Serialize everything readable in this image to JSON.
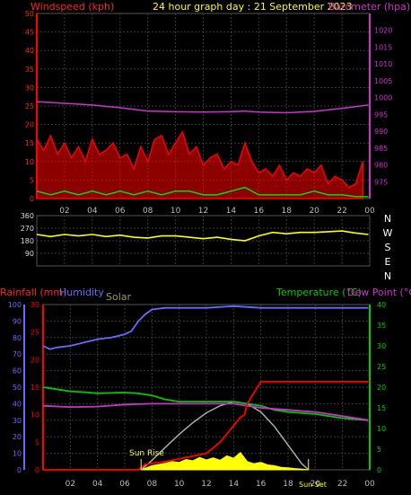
{
  "colors": {
    "background": "#000000",
    "grid": "#3a3a3a",
    "wind": "#ff0000",
    "gust_ok": "#00e000",
    "barometer": "#cc33cc",
    "direction": "#ffff00",
    "rain": "#ff0000",
    "humidity": "#6a6aff",
    "solar": "#ffff00",
    "solar_curve": "#aaaaaa",
    "temperature": "#00cc00",
    "dewpoint": "#cc33cc",
    "tick_text": "#bbbbbb",
    "direction_labels": "#ffffff"
  },
  "chart_data": [
    {
      "id": "wind_baro",
      "type": "line",
      "title": "24 hour graph day : 21 September 2023",
      "left_axis_label": "Windspeed (kph)",
      "right_axis_label": "Barometer (hpa)",
      "left_range": [
        0,
        50
      ],
      "left_ticks": [
        "0",
        "5",
        "10",
        "15",
        "20",
        "25",
        "30",
        "35",
        "40",
        "45",
        "50"
      ],
      "right_range": [
        970,
        1025
      ],
      "right_ticks": [
        "975",
        "980",
        "985",
        "990",
        "995",
        "1000",
        "1005",
        "1010",
        "1015",
        "1020"
      ],
      "x_ticks": [
        "02",
        "04",
        "06",
        "08",
        "10",
        "12",
        "14",
        "16",
        "18",
        "20",
        "22",
        "00"
      ],
      "series": [
        {
          "key": "windspeed",
          "axis": "left",
          "hour": [
            0,
            0.5,
            1,
            1.5,
            2,
            2.5,
            3,
            3.5,
            4,
            4.5,
            5,
            5.5,
            6,
            6.5,
            7,
            7.5,
            8,
            8.5,
            9,
            9.5,
            10,
            10.5,
            11,
            11.5,
            12,
            12.5,
            13,
            13.5,
            14,
            14.5,
            15,
            15.5,
            16,
            16.5,
            17,
            17.5,
            18,
            18.5,
            19,
            19.5,
            20,
            20.5,
            21,
            21.5,
            22,
            22.5,
            23,
            23.5
          ],
          "values": [
            16,
            13,
            17,
            12,
            15,
            11,
            14,
            10,
            16,
            12,
            13,
            15,
            11,
            12,
            8,
            14,
            10,
            16,
            17,
            12,
            15,
            18,
            12,
            14,
            9,
            11,
            12,
            8,
            10,
            9,
            15,
            10,
            7,
            8,
            6,
            9,
            5,
            7,
            6,
            8,
            7,
            9,
            4,
            6,
            5,
            3,
            4,
            10
          ]
        },
        {
          "key": "avg_wind",
          "axis": "left",
          "hour": [
            0,
            1,
            2,
            3,
            4,
            5,
            6,
            7,
            8,
            9,
            10,
            11,
            12,
            13,
            14,
            15,
            16,
            17,
            18,
            19,
            20,
            21,
            22,
            23,
            23.9
          ],
          "values": [
            2,
            1,
            2,
            1,
            2,
            1,
            2,
            1,
            2,
            1,
            2,
            2,
            1,
            1,
            2,
            3,
            1,
            1,
            1,
            1,
            2,
            1,
            1,
            0.5,
            0.5
          ]
        },
        {
          "key": "barometer",
          "axis": "right",
          "hour": [
            0,
            2,
            4,
            6,
            8,
            10,
            12,
            14,
            15,
            16,
            18,
            20,
            22,
            23.9
          ],
          "values": [
            998.8,
            998.3,
            997.8,
            997.0,
            996.0,
            995.8,
            995.7,
            995.8,
            996.0,
            995.7,
            995.5,
            995.9,
            996.8,
            997.8
          ]
        }
      ]
    },
    {
      "id": "direction",
      "type": "line",
      "range": [
        0,
        360
      ],
      "y_ticks": [
        "90",
        "180",
        "270",
        "360"
      ],
      "compass_labels": [
        "N",
        "W",
        "S",
        "E",
        "N"
      ],
      "series": [
        {
          "key": "wind_direction",
          "hour": [
            0,
            1,
            2,
            3,
            4,
            5,
            6,
            7,
            8,
            9,
            10,
            11,
            12,
            13,
            14,
            15,
            16,
            17,
            18,
            19,
            20,
            21,
            22,
            23,
            23.9
          ],
          "values": [
            225,
            210,
            225,
            215,
            225,
            210,
            220,
            205,
            200,
            215,
            215,
            205,
            195,
            205,
            190,
            180,
            215,
            240,
            230,
            240,
            240,
            245,
            250,
            235,
            225
          ]
        }
      ]
    },
    {
      "id": "rain_temp",
      "type": "line",
      "rain_label": "Rainfall (mm)",
      "humidity_label": "Humidity",
      "solar_label": "Solar",
      "temperature_label": "Temperature (°C)",
      "dewpoint_label": "Dew Point (°C)",
      "sunrise_label": "Sun Rise",
      "sunset_label": "Sun Set",
      "humidity_range": [
        0,
        100
      ],
      "humidity_ticks": [
        "0",
        "10",
        "20",
        "30",
        "40",
        "50",
        "60",
        "70",
        "80",
        "90",
        "100"
      ],
      "rain_range": [
        0,
        30
      ],
      "rain_ticks": [
        "0",
        "5",
        "10",
        "15",
        "20",
        "25",
        "30"
      ],
      "temp_range": [
        0,
        40
      ],
      "temp_ticks": [
        "0",
        "5",
        "10",
        "15",
        "20",
        "25",
        "30",
        "35",
        "40"
      ],
      "x_ticks": [
        "02",
        "04",
        "06",
        "08",
        "10",
        "12",
        "14",
        "16",
        "18",
        "20",
        "22",
        "00"
      ],
      "series": [
        {
          "key": "humidity",
          "hour": [
            0,
            0.5,
            1,
            2,
            3,
            4,
            5,
            6,
            6.5,
            7,
            7.5,
            8,
            9,
            10,
            12,
            14,
            16,
            18,
            20,
            22,
            23.9
          ],
          "values": [
            75,
            73,
            74,
            75,
            77,
            79,
            80,
            82,
            84,
            90,
            94,
            97,
            98,
            98,
            98,
            99,
            98,
            98,
            98,
            98,
            98
          ]
        },
        {
          "key": "temperature",
          "hour": [
            0,
            1,
            2,
            3,
            4,
            5,
            6,
            7,
            8,
            9,
            10,
            12,
            14,
            16,
            17,
            18,
            20,
            22,
            23.9
          ],
          "values": [
            20,
            19.5,
            19,
            18.8,
            18.5,
            18.6,
            18.7,
            18.5,
            18,
            17,
            16.5,
            16.5,
            16.5,
            15.5,
            14.5,
            14,
            13.5,
            12.5,
            12
          ]
        },
        {
          "key": "dewpoint",
          "hour": [
            0,
            2,
            4,
            6,
            8,
            10,
            12,
            14,
            16,
            18,
            20,
            22,
            23.9
          ],
          "values": [
            15.5,
            15.2,
            15.3,
            15.8,
            16,
            16,
            16,
            16,
            15,
            14.5,
            14,
            13,
            12
          ]
        },
        {
          "key": "rainfall",
          "hour": [
            0,
            7,
            7.5,
            8,
            9,
            10,
            11,
            12,
            12.5,
            13,
            13.5,
            14,
            14.5,
            14.8,
            15,
            15.5,
            16,
            24
          ],
          "values": [
            0,
            0,
            1,
            1.2,
            1.5,
            2,
            2.5,
            3,
            4,
            5,
            6.5,
            8,
            9.5,
            10,
            12,
            14,
            16,
            16
          ]
        },
        {
          "key": "solar_theoretical",
          "axis": "temp",
          "hour": [
            7.2,
            8,
            9,
            10,
            11,
            12,
            13,
            14,
            15,
            16,
            17,
            18,
            19,
            19.5
          ],
          "values": [
            0,
            2.3,
            5.5,
            8.6,
            11.4,
            13.8,
            15.5,
            16.5,
            16.0,
            14.0,
            10.5,
            6.0,
            1.5,
            0
          ]
        },
        {
          "key": "solar",
          "axis": "temp",
          "hour": [
            7.2,
            7.5,
            8,
            8.5,
            9,
            9.5,
            10,
            10.5,
            11,
            11.5,
            12,
            12.5,
            13,
            13.5,
            14,
            14.5,
            15,
            15.5,
            16,
            16.5,
            17,
            17.5,
            18,
            18.5,
            19,
            19.5
          ],
          "values": [
            0,
            0.4,
            1.0,
            1.3,
            1.6,
            2.0,
            1.8,
            2.5,
            2.2,
            3.0,
            2.4,
            2.9,
            2.3,
            3.4,
            2.8,
            4.2,
            2.0,
            1.5,
            1.8,
            1.2,
            1.0,
            0.6,
            0.5,
            0.3,
            0.2,
            0
          ]
        }
      ]
    }
  ]
}
